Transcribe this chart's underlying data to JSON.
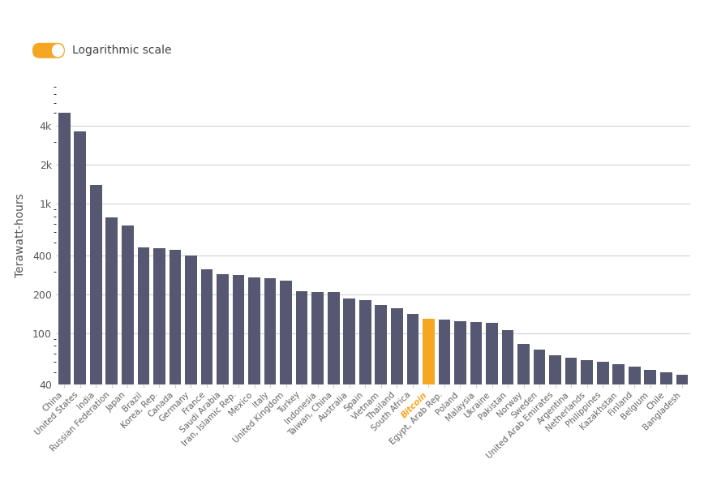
{
  "categories": [
    "China",
    "United States",
    "India",
    "Russian Federation",
    "Japan",
    "Brazil",
    "Korea, Rep.",
    "Canada",
    "Germany",
    "France",
    "Saudi Arabia",
    "Iran, Islamic Rep.",
    "Mexico",
    "Italy",
    "United Kingdom",
    "Turkey",
    "Indonesia",
    "Taiwan, China",
    "Australia",
    "Spain",
    "Vietnam",
    "Thailand",
    "South Africa",
    "Bitcoin",
    "Egypt, Arab Rep.",
    "Poland",
    "Malaysia",
    "Ukraine",
    "Pakistan",
    "Norway",
    "Sweden",
    "United Arab Emirates",
    "Argentina",
    "Netherlands",
    "Philippines",
    "Kazakhstan",
    "Finland",
    "Belgium",
    "Chile",
    "Bangladesh"
  ],
  "values": [
    5000,
    3600,
    1400,
    780,
    680,
    460,
    455,
    440,
    400,
    310,
    285,
    280,
    270,
    265,
    255,
    210,
    208,
    207,
    185,
    180,
    165,
    155,
    140,
    130,
    127,
    124,
    122,
    121,
    105,
    83,
    75,
    68,
    65,
    62,
    60,
    58,
    55,
    52,
    50,
    48
  ],
  "bar_color": "#555870",
  "bitcoin_color": "#F5A623",
  "bitcoin_index": 23,
  "ylabel": "Terawatt-hours",
  "background_color": "#ffffff",
  "grid_color": "#d0d0d0",
  "yticks": [
    40,
    100,
    200,
    400,
    1000,
    2000,
    4000
  ],
  "ytick_labels": [
    "40",
    "100",
    "200",
    "400",
    "1k",
    "2k",
    "4k"
  ],
  "ylim_low": 40,
  "ylim_high": 8000,
  "legend_label": "Logarithmic scale",
  "toggle_color": "#F5A623",
  "tick_fontsize": 7.5,
  "ylabel_fontsize": 10,
  "legend_fontsize": 10
}
